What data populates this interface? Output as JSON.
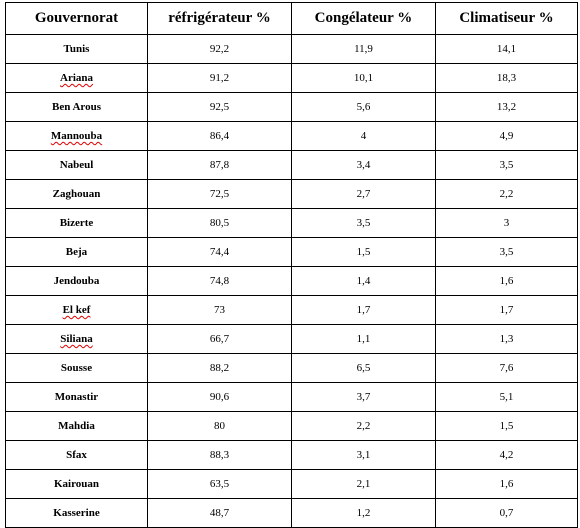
{
  "table": {
    "headers": [
      "Gouvernorat",
      "réfrigérateur %",
      "Congélateur %",
      "Climatiseur %"
    ],
    "rows": [
      {
        "gouvernorat": "Tunis",
        "refrigerateur": "92,2",
        "congelateur": "11,9",
        "climatiseur": "14,1",
        "spell_flag": false
      },
      {
        "gouvernorat": "Ariana",
        "refrigerateur": "91,2",
        "congelateur": "10,1",
        "climatiseur": "18,3",
        "spell_flag": true
      },
      {
        "gouvernorat": "Ben Arous",
        "refrigerateur": "92,5",
        "congelateur": "5,6",
        "climatiseur": "13,2",
        "spell_flag": false
      },
      {
        "gouvernorat": "Mannouba",
        "refrigerateur": "86,4",
        "congelateur": "4",
        "climatiseur": "4,9",
        "spell_flag": true
      },
      {
        "gouvernorat": "Nabeul",
        "refrigerateur": "87,8",
        "congelateur": "3,4",
        "climatiseur": "3,5",
        "spell_flag": false
      },
      {
        "gouvernorat": "Zaghouan",
        "refrigerateur": "72,5",
        "congelateur": "2,7",
        "climatiseur": "2,2",
        "spell_flag": false
      },
      {
        "gouvernorat": "Bizerte",
        "refrigerateur": "80,5",
        "congelateur": "3,5",
        "climatiseur": "3",
        "spell_flag": false
      },
      {
        "gouvernorat": "Beja",
        "refrigerateur": "74,4",
        "congelateur": "1,5",
        "climatiseur": "3,5",
        "spell_flag": false
      },
      {
        "gouvernorat": "Jendouba",
        "refrigerateur": "74,8",
        "congelateur": "1,4",
        "climatiseur": "1,6",
        "spell_flag": false
      },
      {
        "gouvernorat": "El kef",
        "refrigerateur": "73",
        "congelateur": "1,7",
        "climatiseur": "1,7",
        "spell_flag": true
      },
      {
        "gouvernorat": "Siliana",
        "refrigerateur": "66,7",
        "congelateur": "1,1",
        "climatiseur": "1,3",
        "spell_flag": true
      },
      {
        "gouvernorat": "Sousse",
        "refrigerateur": "88,2",
        "congelateur": "6,5",
        "climatiseur": "7,6",
        "spell_flag": false
      },
      {
        "gouvernorat": "Monastir",
        "refrigerateur": "90,6",
        "congelateur": "3,7",
        "climatiseur": "5,1",
        "spell_flag": false
      },
      {
        "gouvernorat": "Mahdia",
        "refrigerateur": "80",
        "congelateur": "2,2",
        "climatiseur": "1,5",
        "spell_flag": false
      },
      {
        "gouvernorat": "Sfax",
        "refrigerateur": "88,3",
        "congelateur": "3,1",
        "climatiseur": "4,2",
        "spell_flag": false
      },
      {
        "gouvernorat": "Kairouan",
        "refrigerateur": "63,5",
        "congelateur": "2,1",
        "climatiseur": "1,6",
        "spell_flag": false
      },
      {
        "gouvernorat": "Kasserine",
        "refrigerateur": "48,7",
        "congelateur": "1,2",
        "climatiseur": "0,7",
        "spell_flag": false
      }
    ]
  }
}
